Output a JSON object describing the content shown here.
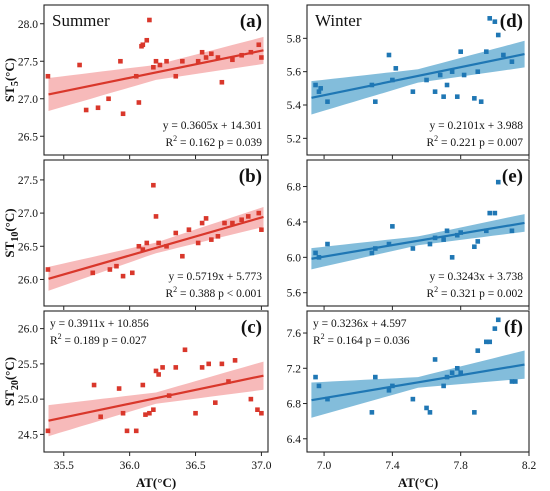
{
  "colors": {
    "summer": "#d9372b",
    "summer_band": "#f4a3a3",
    "winter": "#1f77b4",
    "winter_band": "#5aa7cf"
  },
  "x_axes": {
    "summer": {
      "label": "AT(°C)",
      "range": [
        35.35,
        37.05
      ],
      "ticks": [
        "35.5",
        "36.0",
        "36.5",
        "37.0"
      ]
    },
    "winter": {
      "label": "AT(°C)",
      "range": [
        6.9,
        8.2
      ],
      "ticks": [
        "7.0",
        "7.4",
        "7.8",
        "8.2"
      ]
    }
  },
  "chart_data": [
    {
      "panel": "(a)",
      "season_label": "Summer",
      "type": "scatter",
      "season": "summer",
      "ylabel_main": "ST",
      "ylabel_sub": "5",
      "ylabel_unit": "(°C)",
      "ylim": [
        26.25,
        28.25
      ],
      "yticks": [
        "26.5",
        "27.0",
        "27.5",
        "28.0"
      ],
      "equation": "y = 0.3605x + 14.301",
      "stats_r2": "R",
      "stats_sup": "2",
      "stats_rest": " = 0.162  p = 0.039",
      "stats_pos": "bottom-right",
      "fit": {
        "slope": 0.3605,
        "intercept": 14.301
      },
      "band_half_width": [
        0.22,
        0.1,
        0.18
      ],
      "x": [
        35.38,
        35.62,
        35.67,
        35.76,
        35.84,
        35.93,
        35.95,
        36.05,
        36.07,
        36.09,
        36.1,
        36.13,
        36.15,
        36.18,
        36.2,
        36.23,
        36.28,
        36.35,
        36.4,
        36.52,
        36.55,
        36.58,
        36.62,
        36.67,
        36.7,
        36.78,
        36.85,
        36.92,
        36.98,
        37.0
      ],
      "y": [
        27.3,
        27.45,
        26.85,
        26.88,
        27.0,
        27.5,
        26.8,
        27.3,
        26.95,
        27.7,
        27.72,
        27.78,
        28.05,
        27.42,
        27.5,
        27.45,
        27.5,
        27.3,
        27.5,
        27.5,
        27.62,
        27.55,
        27.6,
        27.55,
        27.22,
        27.52,
        27.58,
        27.62,
        27.72,
        27.55
      ]
    },
    {
      "panel": "(d)",
      "season_label": "Winter",
      "type": "scatter",
      "season": "winter",
      "ylabel_main": "",
      "ylabel_sub": "",
      "ylabel_unit": "",
      "ylim": [
        5.1,
        6.0
      ],
      "yticks": [
        "5.2",
        "5.4",
        "5.6",
        "5.8"
      ],
      "equation": "y = 0.2101x + 3.988",
      "stats_r2": "R",
      "stats_sup": "2",
      "stats_rest": " = 0.221  p = 0.007",
      "stats_pos": "bottom-right",
      "fit": {
        "slope": 0.2101,
        "intercept": 3.988
      },
      "band_half_width": [
        0.1,
        0.04,
        0.08
      ],
      "x": [
        6.95,
        6.97,
        6.98,
        7.02,
        7.28,
        7.3,
        7.38,
        7.4,
        7.42,
        7.52,
        7.6,
        7.65,
        7.68,
        7.7,
        7.72,
        7.75,
        7.78,
        7.8,
        7.82,
        7.88,
        7.9,
        7.92,
        7.95,
        7.97,
        8.0,
        8.02,
        8.05,
        8.1
      ],
      "y": [
        5.52,
        5.48,
        5.5,
        5.42,
        5.52,
        5.42,
        5.7,
        5.55,
        5.62,
        5.48,
        5.55,
        5.48,
        5.58,
        5.45,
        5.52,
        5.6,
        5.45,
        5.72,
        5.58,
        5.44,
        5.6,
        5.42,
        5.72,
        5.92,
        5.9,
        5.82,
        5.7,
        5.66
      ]
    },
    {
      "panel": "(b)",
      "season_label": "",
      "type": "scatter",
      "season": "summer",
      "ylabel_main": "ST",
      "ylabel_sub": "10",
      "ylabel_unit": "(°C)",
      "ylim": [
        25.6,
        27.8
      ],
      "yticks": [
        "26.0",
        "26.5",
        "27.0",
        "27.5"
      ],
      "equation": "y = 0.5719x + 5.773",
      "stats_r2": "R",
      "stats_sup": "2",
      "stats_rest": " = 0.388  p < 0.001",
      "stats_pos": "bottom-right",
      "fit": {
        "slope": 0.5719,
        "intercept": 5.773
      },
      "band_half_width": [
        0.18,
        0.08,
        0.15
      ],
      "x": [
        35.38,
        35.72,
        35.85,
        35.9,
        35.95,
        36.02,
        36.07,
        36.1,
        36.13,
        36.18,
        36.2,
        36.22,
        36.28,
        36.35,
        36.4,
        36.45,
        36.52,
        36.55,
        36.58,
        36.62,
        36.67,
        36.72,
        36.78,
        36.85,
        36.9,
        36.98,
        37.0
      ],
      "y": [
        26.15,
        26.1,
        26.15,
        26.2,
        26.05,
        26.1,
        26.5,
        26.45,
        26.55,
        27.42,
        26.95,
        26.55,
        26.5,
        26.7,
        26.35,
        26.75,
        26.55,
        26.85,
        26.92,
        26.6,
        26.65,
        26.85,
        26.85,
        26.9,
        26.95,
        27.0,
        26.75
      ]
    },
    {
      "panel": "(e)",
      "season_label": "",
      "type": "scatter",
      "season": "winter",
      "ylabel_main": "",
      "ylabel_sub": "",
      "ylabel_unit": "",
      "ylim": [
        5.45,
        7.1
      ],
      "yticks": [
        "5.6",
        "6.0",
        "6.4",
        "6.8"
      ],
      "equation": "y = 0.3243x + 3.738",
      "stats_r2": "R",
      "stats_sup": "2",
      "stats_rest": " = 0.321  p = 0.002",
      "stats_pos": "bottom-right",
      "fit": {
        "slope": 0.3243,
        "intercept": 3.738
      },
      "band_half_width": [
        0.12,
        0.05,
        0.1
      ],
      "x": [
        6.95,
        6.97,
        7.02,
        7.28,
        7.3,
        7.38,
        7.4,
        7.52,
        7.62,
        7.65,
        7.7,
        7.72,
        7.75,
        7.78,
        7.8,
        7.88,
        7.9,
        7.95,
        7.97,
        8.0,
        8.02,
        8.1
      ],
      "y": [
        6.05,
        6.0,
        6.15,
        6.05,
        6.1,
        6.15,
        6.35,
        6.1,
        6.15,
        6.22,
        6.2,
        6.3,
        6.0,
        6.25,
        6.28,
        6.12,
        6.18,
        6.3,
        6.5,
        6.5,
        6.85,
        6.3
      ]
    },
    {
      "panel": "(c)",
      "season_label": "",
      "type": "scatter",
      "season": "summer",
      "ylabel_main": "ST",
      "ylabel_sub": "20",
      "ylabel_unit": "(°C)",
      "ylim": [
        24.25,
        26.25
      ],
      "yticks": [
        "24.5",
        "25.0",
        "25.5",
        "26.0"
      ],
      "equation": "y = 0.3911x + 10.856",
      "stats_r2": "R",
      "stats_sup": "2",
      "stats_rest": " = 0.189  p = 0.027",
      "stats_pos": "top-left",
      "fit": {
        "slope": 0.3911,
        "intercept": 10.856
      },
      "band_half_width": [
        0.22,
        0.08,
        0.2
      ],
      "x": [
        35.38,
        35.73,
        35.78,
        35.92,
        35.95,
        35.98,
        36.05,
        36.1,
        36.12,
        36.15,
        36.18,
        36.2,
        36.22,
        36.25,
        36.3,
        36.35,
        36.42,
        36.5,
        36.55,
        36.6,
        36.65,
        36.7,
        36.75,
        36.8,
        36.92,
        36.97,
        37.0
      ],
      "y": [
        24.55,
        25.2,
        24.75,
        25.15,
        24.8,
        24.55,
        24.55,
        25.2,
        24.78,
        24.8,
        24.85,
        25.4,
        25.35,
        25.45,
        25.05,
        25.45,
        25.7,
        24.8,
        25.45,
        25.5,
        24.95,
        25.5,
        25.25,
        25.55,
        25.0,
        24.85,
        24.8
      ]
    },
    {
      "panel": "(f)",
      "season_label": "",
      "type": "scatter",
      "season": "winter",
      "ylabel_main": "",
      "ylabel_sub": "",
      "ylabel_unit": "",
      "ylim": [
        6.25,
        7.85
      ],
      "yticks": [
        "6.4",
        "6.8",
        "7.2",
        "7.6"
      ],
      "equation": "y = 0.3236x + 4.597",
      "stats_r2": "R",
      "stats_sup": "2",
      "stats_rest": " = 0.164  p = 0.036",
      "stats_pos": "top-left",
      "fit": {
        "slope": 0.3236,
        "intercept": 4.597
      },
      "band_half_width": [
        0.2,
        0.06,
        0.16
      ],
      "x": [
        6.95,
        6.97,
        7.02,
        7.28,
        7.3,
        7.38,
        7.4,
        7.52,
        7.6,
        7.62,
        7.65,
        7.7,
        7.72,
        7.75,
        7.78,
        7.8,
        7.88,
        7.9,
        7.95,
        7.97,
        8.0,
        8.02,
        8.1,
        8.12
      ],
      "y": [
        7.1,
        7.0,
        6.85,
        6.7,
        7.1,
        6.95,
        7.0,
        6.85,
        6.75,
        6.7,
        7.3,
        7.0,
        7.1,
        7.15,
        7.2,
        7.15,
        6.7,
        7.4,
        7.5,
        7.5,
        7.65,
        7.75,
        7.05,
        7.05
      ]
    }
  ]
}
